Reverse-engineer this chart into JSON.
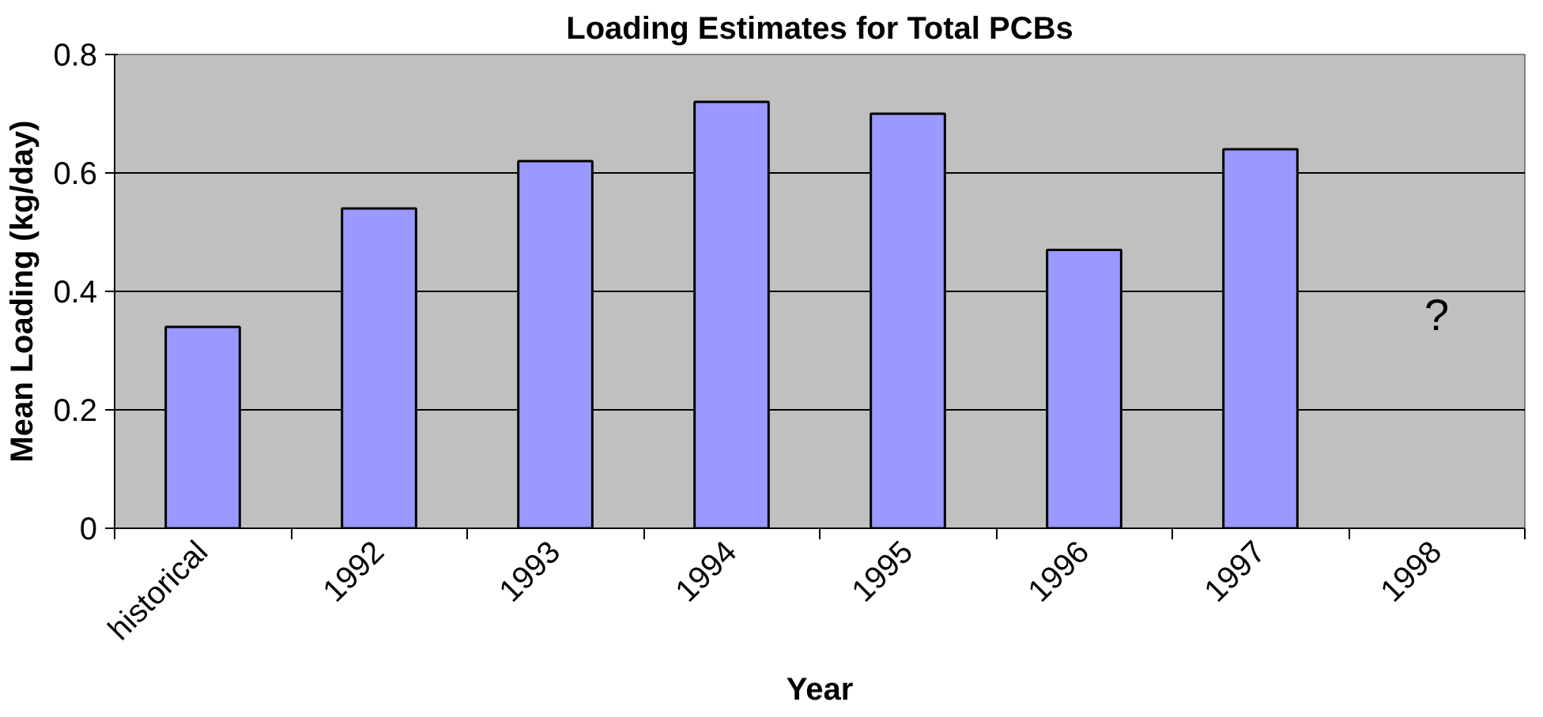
{
  "chart_data": {
    "type": "bar",
    "title": "Loading Estimates for Total PCBs",
    "xlabel": "Year",
    "ylabel": "Mean Loading (kg/day)",
    "categories": [
      "historical",
      "1992",
      "1993",
      "1994",
      "1995",
      "1996",
      "1997",
      "1998"
    ],
    "values": [
      0.34,
      0.54,
      0.62,
      0.72,
      0.7,
      0.47,
      0.64,
      null
    ],
    "color": "#9999ff",
    "ylim": [
      0,
      0.8
    ],
    "yticks": [
      0,
      0.2,
      0.4,
      0.6,
      0.8
    ],
    "grid": "y",
    "annotations": [
      "?"
    ]
  }
}
